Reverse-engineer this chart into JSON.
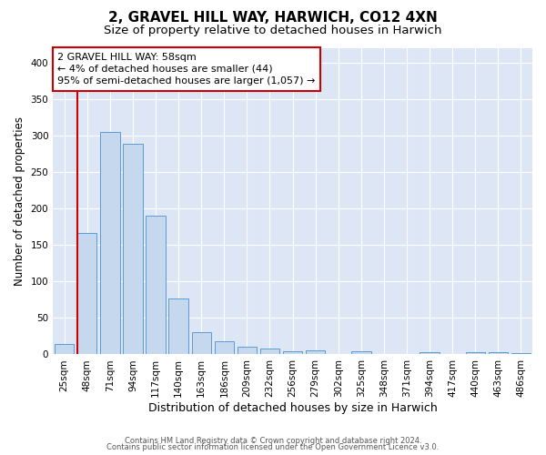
{
  "title1": "2, GRAVEL HILL WAY, HARWICH, CO12 4XN",
  "title2": "Size of property relative to detached houses in Harwich",
  "xlabel": "Distribution of detached houses by size in Harwich",
  "ylabel": "Number of detached properties",
  "footer1": "Contains HM Land Registry data © Crown copyright and database right 2024.",
  "footer2": "Contains public sector information licensed under the Open Government Licence v3.0.",
  "annotation_line1": "2 GRAVEL HILL WAY: 58sqm",
  "annotation_line2": "← 4% of detached houses are smaller (44)",
  "annotation_line3": "95% of semi-detached houses are larger (1,057) →",
  "bar_color": "#c5d8ee",
  "bar_edge_color": "#5b9bd5",
  "line_color": "#cc0000",
  "bg_color": "#dce6f5",
  "categories": [
    "25sqm",
    "48sqm",
    "71sqm",
    "94sqm",
    "117sqm",
    "140sqm",
    "163sqm",
    "186sqm",
    "209sqm",
    "232sqm",
    "256sqm",
    "279sqm",
    "302sqm",
    "325sqm",
    "348sqm",
    "371sqm",
    "394sqm",
    "417sqm",
    "440sqm",
    "463sqm",
    "486sqm"
  ],
  "values": [
    14,
    166,
    305,
    289,
    190,
    76,
    31,
    18,
    10,
    8,
    4,
    5,
    0,
    4,
    0,
    0,
    3,
    0,
    3,
    3,
    2
  ],
  "ylim": [
    0,
    420
  ],
  "yticks": [
    0,
    50,
    100,
    150,
    200,
    250,
    300,
    350,
    400
  ],
  "red_line_x": 1.0,
  "title1_fontsize": 11,
  "title2_fontsize": 9.5,
  "xlabel_fontsize": 9,
  "ylabel_fontsize": 8.5,
  "tick_fontsize": 7.5,
  "annotation_fontsize": 8,
  "footer_fontsize": 6
}
